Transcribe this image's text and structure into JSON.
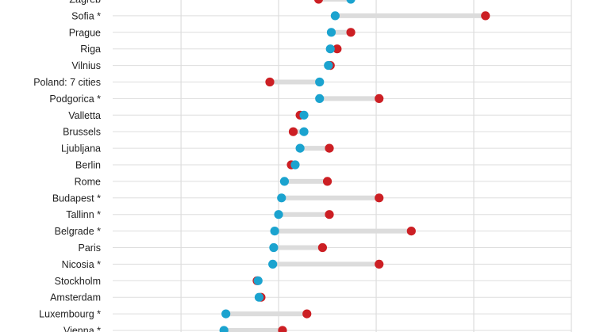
{
  "chart_data": {
    "type": "dumbbell",
    "title": "",
    "xlabel": "",
    "ylabel": "",
    "xlim": [
      -1.7,
      3.0
    ],
    "grid": true,
    "colors": {
      "start": "#1ba3cf",
      "end": "#cc1f24",
      "connector": "#dcdcdc",
      "grid": "#dddddd"
    },
    "categories": [
      "Zagreb",
      "Sofia *",
      "Prague",
      "Riga",
      "Vilnius",
      "Poland: 7 cities",
      "Podgorica *",
      "Valletta",
      "Brussels",
      "Ljubljana",
      "Berlin",
      "Rome",
      "Budapest *",
      "Tallinn *",
      "Belgrade *",
      "Paris",
      "Nicosia *",
      "Stockholm",
      "Amsterdam",
      "Luxembourg *",
      "Vienna *"
    ],
    "series": [
      {
        "values": [
          0.74,
          0.58,
          0.54,
          0.53,
          0.51,
          0.42,
          0.42,
          0.26,
          0.26,
          0.22,
          0.17,
          0.06,
          0.03,
          0.0,
          -0.04,
          -0.05,
          -0.06,
          -0.21,
          -0.2,
          -0.54,
          -0.56
        ]
      },
      {
        "values": [
          0.41,
          2.12,
          0.74,
          0.6,
          0.53,
          -0.09,
          1.03,
          0.22,
          0.15,
          0.52,
          0.13,
          0.5,
          1.03,
          0.52,
          1.36,
          0.45,
          1.03,
          -0.22,
          -0.18,
          0.29,
          0.04
        ]
      }
    ]
  }
}
